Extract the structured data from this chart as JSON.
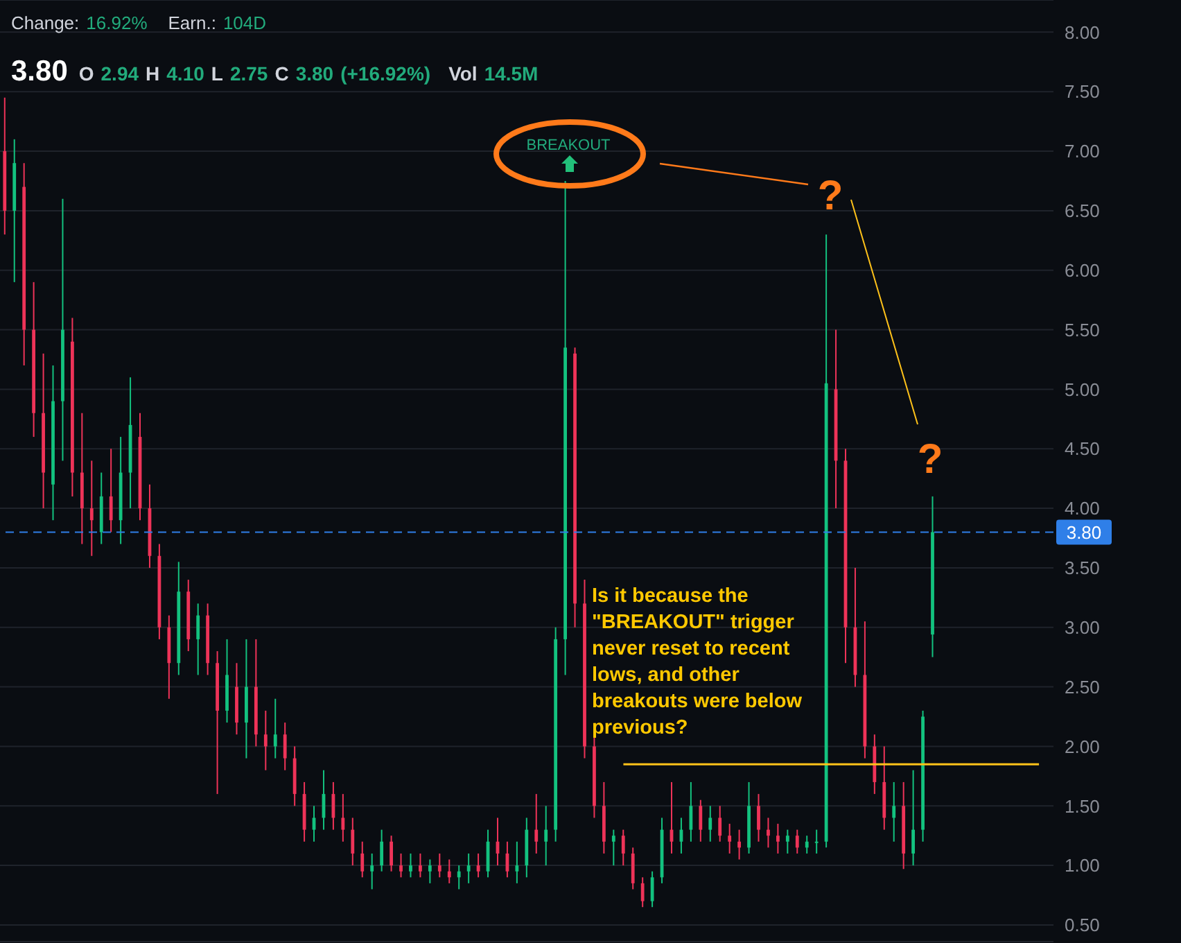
{
  "chart_data": {
    "type": "candlestick",
    "categories": [
      null,
      null,
      null,
      null,
      null,
      null,
      null,
      null,
      null,
      null,
      null,
      null,
      null,
      null,
      null,
      null,
      null,
      null,
      null,
      null,
      null,
      null,
      null,
      null,
      null,
      null,
      null,
      null,
      null,
      null,
      null,
      null,
      null,
      null,
      null,
      null,
      null,
      null,
      null,
      null,
      null,
      null,
      null,
      null,
      null,
      null,
      null,
      null,
      null,
      null,
      null,
      null,
      null,
      null,
      null,
      null,
      null,
      null,
      null,
      null,
      null,
      null,
      null,
      null,
      null,
      null,
      null,
      null,
      null,
      null,
      null,
      null,
      null,
      null,
      null,
      null,
      null,
      null,
      null,
      null,
      null,
      null,
      null,
      null,
      null,
      null,
      null,
      null,
      null,
      null,
      null,
      null,
      null,
      null,
      null,
      null,
      null,
      null,
      null,
      null,
      null,
      null,
      null,
      null,
      null,
      null,
      null,
      null,
      null
    ],
    "ohlc": [
      [
        7.0,
        7.45,
        6.3,
        6.5
      ],
      [
        6.5,
        7.1,
        5.9,
        6.9
      ],
      [
        6.7,
        6.9,
        5.2,
        5.5
      ],
      [
        5.5,
        5.9,
        4.6,
        4.8
      ],
      [
        4.8,
        5.3,
        4.0,
        4.3
      ],
      [
        4.2,
        5.2,
        3.9,
        4.9
      ],
      [
        4.9,
        6.6,
        4.4,
        5.5
      ],
      [
        5.4,
        5.6,
        4.1,
        4.3
      ],
      [
        4.3,
        4.8,
        3.7,
        4.0
      ],
      [
        4.0,
        4.4,
        3.6,
        3.9
      ],
      [
        3.8,
        4.3,
        3.7,
        4.1
      ],
      [
        4.1,
        4.5,
        3.8,
        3.9
      ],
      [
        3.9,
        4.6,
        3.7,
        4.3
      ],
      [
        4.3,
        5.1,
        4.0,
        4.7
      ],
      [
        4.6,
        4.8,
        3.9,
        4.0
      ],
      [
        4.0,
        4.2,
        3.5,
        3.6
      ],
      [
        3.6,
        3.7,
        2.9,
        3.0
      ],
      [
        3.0,
        3.1,
        2.4,
        2.7
      ],
      [
        2.7,
        3.55,
        2.6,
        3.3
      ],
      [
        3.3,
        3.4,
        2.8,
        2.9
      ],
      [
        2.9,
        3.2,
        2.6,
        3.1
      ],
      [
        3.1,
        3.2,
        2.6,
        2.7
      ],
      [
        2.7,
        2.8,
        1.6,
        2.3
      ],
      [
        2.3,
        2.9,
        2.2,
        2.6
      ],
      [
        2.5,
        2.7,
        2.1,
        2.2
      ],
      [
        2.2,
        2.9,
        1.9,
        2.5
      ],
      [
        2.5,
        2.9,
        2.0,
        2.1
      ],
      [
        2.1,
        2.3,
        1.8,
        2.0
      ],
      [
        2.0,
        2.4,
        1.9,
        2.1
      ],
      [
        2.1,
        2.2,
        1.8,
        1.9
      ],
      [
        1.9,
        2.0,
        1.5,
        1.6
      ],
      [
        1.6,
        1.7,
        1.2,
        1.3
      ],
      [
        1.3,
        1.5,
        1.2,
        1.4
      ],
      [
        1.4,
        1.8,
        1.3,
        1.6
      ],
      [
        1.6,
        1.7,
        1.3,
        1.4
      ],
      [
        1.4,
        1.6,
        1.2,
        1.3
      ],
      [
        1.3,
        1.4,
        1.0,
        1.1
      ],
      [
        1.1,
        1.2,
        0.9,
        0.95
      ],
      [
        0.95,
        1.1,
        0.8,
        1.0
      ],
      [
        1.0,
        1.3,
        0.95,
        1.2
      ],
      [
        1.2,
        1.25,
        0.95,
        1.0
      ],
      [
        1.0,
        1.1,
        0.9,
        0.95
      ],
      [
        0.95,
        1.1,
        0.9,
        1.0
      ],
      [
        1.0,
        1.1,
        0.9,
        0.95
      ],
      [
        0.95,
        1.05,
        0.85,
        1.0
      ],
      [
        1.0,
        1.1,
        0.9,
        0.95
      ],
      [
        0.95,
        1.05,
        0.85,
        0.9
      ],
      [
        0.9,
        1.0,
        0.8,
        0.95
      ],
      [
        0.95,
        1.1,
        0.85,
        1.0
      ],
      [
        1.0,
        1.1,
        0.9,
        0.95
      ],
      [
        0.95,
        1.3,
        0.9,
        1.2
      ],
      [
        1.2,
        1.4,
        1.0,
        1.1
      ],
      [
        1.1,
        1.2,
        0.9,
        0.95
      ],
      [
        0.95,
        1.2,
        0.85,
        1.0
      ],
      [
        1.0,
        1.4,
        0.9,
        1.3
      ],
      [
        1.3,
        1.6,
        1.1,
        1.2
      ],
      [
        1.2,
        1.5,
        1.0,
        1.3
      ],
      [
        1.3,
        3.0,
        1.2,
        2.9
      ],
      [
        2.9,
        6.75,
        2.6,
        5.35
      ],
      [
        5.3,
        5.35,
        3.0,
        3.2
      ],
      [
        3.2,
        3.4,
        1.9,
        2.0
      ],
      [
        2.0,
        2.1,
        1.4,
        1.5
      ],
      [
        1.5,
        1.7,
        1.1,
        1.2
      ],
      [
        1.2,
        1.3,
        1.0,
        1.25
      ],
      [
        1.25,
        1.3,
        1.0,
        1.1
      ],
      [
        1.1,
        1.15,
        0.8,
        0.85
      ],
      [
        0.85,
        0.9,
        0.65,
        0.7
      ],
      [
        0.7,
        0.95,
        0.65,
        0.9
      ],
      [
        0.9,
        1.4,
        0.85,
        1.3
      ],
      [
        1.3,
        1.7,
        1.1,
        1.2
      ],
      [
        1.2,
        1.4,
        1.1,
        1.3
      ],
      [
        1.3,
        1.7,
        1.2,
        1.5
      ],
      [
        1.5,
        1.55,
        1.2,
        1.3
      ],
      [
        1.3,
        1.5,
        1.2,
        1.4
      ],
      [
        1.4,
        1.5,
        1.2,
        1.25
      ],
      [
        1.25,
        1.35,
        1.1,
        1.2
      ],
      [
        1.2,
        1.3,
        1.05,
        1.15
      ],
      [
        1.15,
        1.7,
        1.1,
        1.5
      ],
      [
        1.5,
        1.6,
        1.2,
        1.3
      ],
      [
        1.3,
        1.4,
        1.15,
        1.25
      ],
      [
        1.25,
        1.35,
        1.1,
        1.2
      ],
      [
        1.2,
        1.3,
        1.1,
        1.25
      ],
      [
        1.25,
        1.3,
        1.1,
        1.15
      ],
      [
        1.15,
        1.25,
        1.1,
        1.2
      ],
      [
        1.2,
        1.3,
        1.1,
        1.2
      ],
      [
        1.2,
        6.3,
        1.15,
        5.05
      ],
      [
        5.0,
        5.5,
        4.0,
        4.4
      ],
      [
        4.4,
        4.5,
        2.7,
        3.0
      ],
      [
        3.0,
        3.5,
        2.5,
        2.6
      ],
      [
        2.6,
        3.05,
        1.9,
        2.0
      ],
      [
        2.0,
        2.1,
        1.6,
        1.7
      ],
      [
        1.7,
        2.0,
        1.3,
        1.4
      ],
      [
        1.4,
        1.7,
        1.2,
        1.5
      ],
      [
        1.5,
        1.7,
        0.97,
        1.1
      ],
      [
        1.1,
        1.8,
        1.0,
        1.3
      ],
      [
        1.3,
        2.3,
        1.2,
        2.25
      ],
      [
        2.94,
        4.1,
        2.75,
        3.8
      ],
      null,
      null,
      null,
      null,
      null,
      null,
      null,
      null,
      null,
      null,
      null,
      null
    ],
    "ylim": [
      0.36,
      8.27
    ],
    "yticks": [
      {
        "value": 0.5,
        "label": "0.50"
      },
      {
        "value": 1.0,
        "label": "1.00"
      },
      {
        "value": 1.5,
        "label": "1.50"
      },
      {
        "value": 2.0,
        "label": "2.00"
      },
      {
        "value": 2.5,
        "label": "2.50"
      },
      {
        "value": 3.0,
        "label": "3.00"
      },
      {
        "value": 3.5,
        "label": "3.50"
      },
      {
        "value": 4.0,
        "label": "4.00"
      },
      {
        "value": 4.5,
        "label": "4.50"
      },
      {
        "value": 5.0,
        "label": "5.00"
      },
      {
        "value": 5.5,
        "label": "5.50"
      },
      {
        "value": 6.0,
        "label": "6.00"
      },
      {
        "value": 6.5,
        "label": "6.50"
      },
      {
        "value": 7.0,
        "label": "7.00"
      },
      {
        "value": 7.5,
        "label": "7.50"
      },
      {
        "value": 8.0,
        "label": "8.00"
      }
    ],
    "grid": "y",
    "tick_labels": "y",
    "ref_lines": [
      {
        "axis": "y",
        "value": 3.8,
        "label": "3.80",
        "color": "#2f7fe8",
        "line_style": "dashed"
      },
      {
        "axis": "y",
        "value": 1.85,
        "color": "#ffc21a",
        "line_style": "solid"
      }
    ],
    "annotations": [
      "Change: 16.92%",
      "Earn.: 104D",
      "3.80",
      "O 2.94 H 4.10 L 2.75 C 3.80 (+16.92%)",
      "Vol 14.5M",
      "BREAKOUT",
      "?",
      "?",
      "Is it because the \"BREAKOUT\" trigger never reset to recent lows, and other breakouts were below previous?"
    ]
  }
}
